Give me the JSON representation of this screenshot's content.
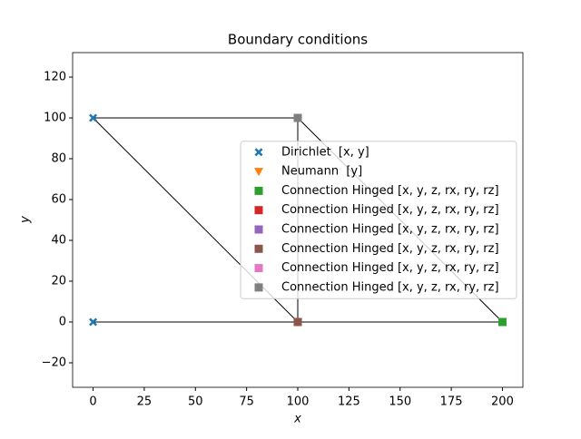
{
  "chart_data": {
    "type": "scatter",
    "title": "Boundary conditions",
    "x_label": "x",
    "y_label": "y",
    "xlim": [
      -10,
      210
    ],
    "ylim": [
      -32,
      132
    ],
    "xticks": [
      0,
      25,
      50,
      75,
      100,
      125,
      150,
      175,
      200
    ],
    "yticks": [
      {
        "value": -20,
        "label": "−20"
      },
      0,
      20,
      40,
      60,
      80,
      100,
      120
    ],
    "legend": "center right",
    "elements": {
      "color": "#000000",
      "segments": [
        {
          "x": [
            0,
            100
          ],
          "y": [
            100,
            100
          ]
        },
        {
          "x": [
            0,
            100
          ],
          "y": [
            100,
            0
          ]
        },
        {
          "x": [
            100,
            100
          ],
          "y": [
            100,
            0
          ]
        },
        {
          "x": [
            100,
            200
          ],
          "y": [
            100,
            0
          ]
        },
        {
          "x": [
            0,
            200
          ],
          "y": [
            0,
            0
          ]
        }
      ]
    },
    "series": [
      {
        "name": "Dirichlet  [x, y]",
        "color": "#1f77b4",
        "marker": "X",
        "x": [
          0,
          0
        ],
        "y": [
          100,
          0
        ]
      },
      {
        "name": "Neumann  [y]",
        "color": "#ff7f0e",
        "marker": "v",
        "x": [
          100
        ],
        "y": [
          0
        ]
      },
      {
        "name": "Connection Hinged [x, y, z, rx, ry, rz]",
        "color": "#2ca02c",
        "marker": "s",
        "x": [
          200
        ],
        "y": [
          0
        ]
      },
      {
        "name": "Connection Hinged [x, y, z, rx, ry, rz]",
        "color": "#d62728",
        "marker": "s",
        "x": [
          100
        ],
        "y": [
          0
        ]
      },
      {
        "name": "Connection Hinged [x, y, z, rx, ry, rz]",
        "color": "#9467bd",
        "marker": "s",
        "x": [
          100
        ],
        "y": [
          0
        ]
      },
      {
        "name": "Connection Hinged [x, y, z, rx, ry, rz]",
        "color": "#8c564b",
        "marker": "s",
        "x": [
          100
        ],
        "y": [
          0
        ]
      },
      {
        "name": "Connection Hinged [x, y, z, rx, ry, rz]",
        "color": "#e377c2",
        "marker": "s",
        "x": [
          100
        ],
        "y": [
          100
        ]
      },
      {
        "name": "Connection Hinged [x, y, z, rx, ry, rz]",
        "color": "#7f7f7f",
        "marker": "s",
        "x": [
          100
        ],
        "y": [
          100
        ]
      }
    ]
  }
}
